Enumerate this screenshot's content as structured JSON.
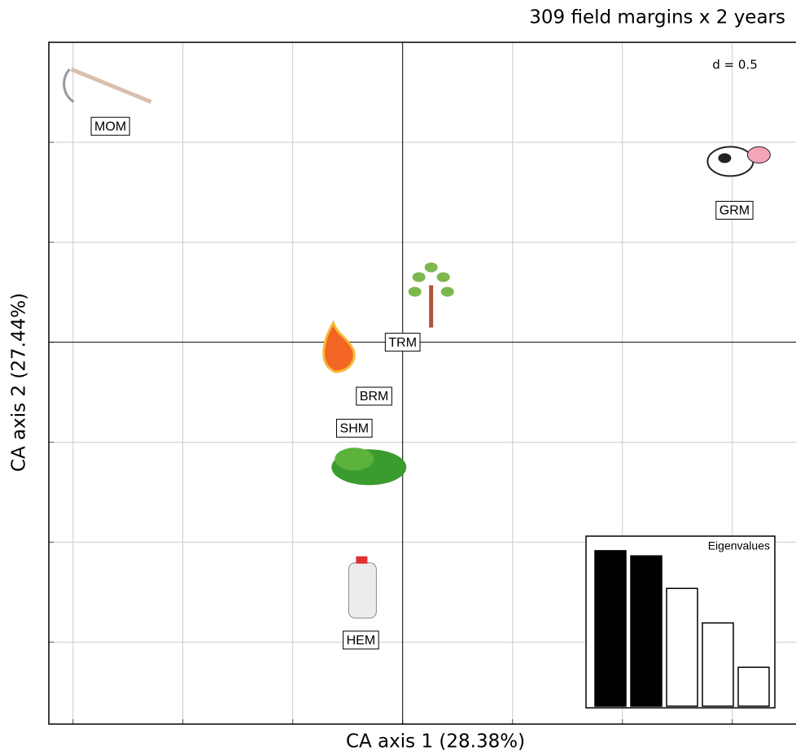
{
  "chart_data": [
    {
      "type": "scatter",
      "title": "309 field margins x 2 years",
      "xlabel": "CA axis 1 (28.38%)",
      "ylabel": "CA axis 2 (27.44%)",
      "annotation": "d = 0.5",
      "labels": [
        "MOM",
        "GRM",
        "TRM",
        "BRM",
        "SHM",
        "HEM"
      ],
      "x": [
        -1.33,
        1.51,
        0.0,
        -0.13,
        -0.22,
        -0.19
      ],
      "values": [
        1.08,
        0.66,
        0.0,
        -0.27,
        -0.43,
        -1.49
      ],
      "xlim": [
        -1.61,
        1.79
      ],
      "ylim": [
        -1.91,
        1.5
      ],
      "xticks": [
        -1.5,
        -1,
        -0.5,
        0,
        0.5,
        1,
        1.5
      ],
      "yticks": [
        -1.5,
        -1,
        -0.5,
        0,
        0.5,
        1,
        1.5
      ],
      "grid": true
    },
    {
      "type": "bar",
      "title": "Eigenvalues",
      "values": [
        28.38,
        27.44,
        21.5,
        15.2,
        7.1
      ],
      "colors": [
        "#000000",
        "#000000",
        "#ffffff",
        "#ffffff",
        "#ffffff"
      ],
      "ylim": [
        0,
        30
      ]
    }
  ]
}
